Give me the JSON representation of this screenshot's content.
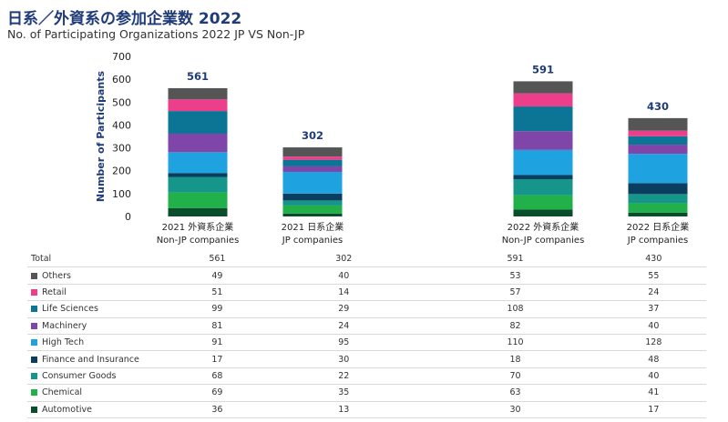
{
  "chart_data": {
    "type": "bar",
    "stacked": true,
    "title": "日系／外資系の参加企業数 2022",
    "subtitle": "No. of Participating Organizations 2022 JP VS Non-JP",
    "ylabel": "Number of Participants",
    "ylim": [
      0,
      700
    ],
    "yticks": [
      0,
      100,
      200,
      300,
      400,
      500,
      600,
      700
    ],
    "categories": [
      {
        "line1": "2021 外資系企業",
        "line2": "Non-JP companies"
      },
      {
        "line1": "2021 日系企業",
        "line2": "JP companies"
      },
      {
        "line1": "2022 外資系企業",
        "line2": "Non-JP companies"
      },
      {
        "line1": "2022 日系企業",
        "line2": "JP companies"
      }
    ],
    "totals": [
      561,
      302,
      591,
      430
    ],
    "totals_row_label": "Total",
    "series": [
      {
        "name": "Automotive",
        "color": "#0a4d2c",
        "values": [
          36,
          13,
          30,
          17
        ]
      },
      {
        "name": "Chemical",
        "color": "#21b04a",
        "values": [
          69,
          35,
          63,
          41
        ]
      },
      {
        "name": "Consumer Goods",
        "color": "#16958a",
        "values": [
          68,
          22,
          70,
          40
        ]
      },
      {
        "name": "Finance and Insurance",
        "color": "#0b3d5e",
        "values": [
          17,
          30,
          18,
          48
        ]
      },
      {
        "name": "High Tech",
        "color": "#1ea3e0",
        "values": [
          91,
          95,
          110,
          128
        ]
      },
      {
        "name": "Machinery",
        "color": "#7f45a8",
        "values": [
          81,
          24,
          82,
          40
        ]
      },
      {
        "name": "Life Sciences",
        "color": "#0c7596",
        "values": [
          99,
          29,
          108,
          37
        ]
      },
      {
        "name": "Retail",
        "color": "#ec3e8a",
        "values": [
          51,
          14,
          57,
          24
        ]
      },
      {
        "name": "Others",
        "color": "#555555",
        "values": [
          49,
          40,
          53,
          55
        ]
      }
    ]
  }
}
